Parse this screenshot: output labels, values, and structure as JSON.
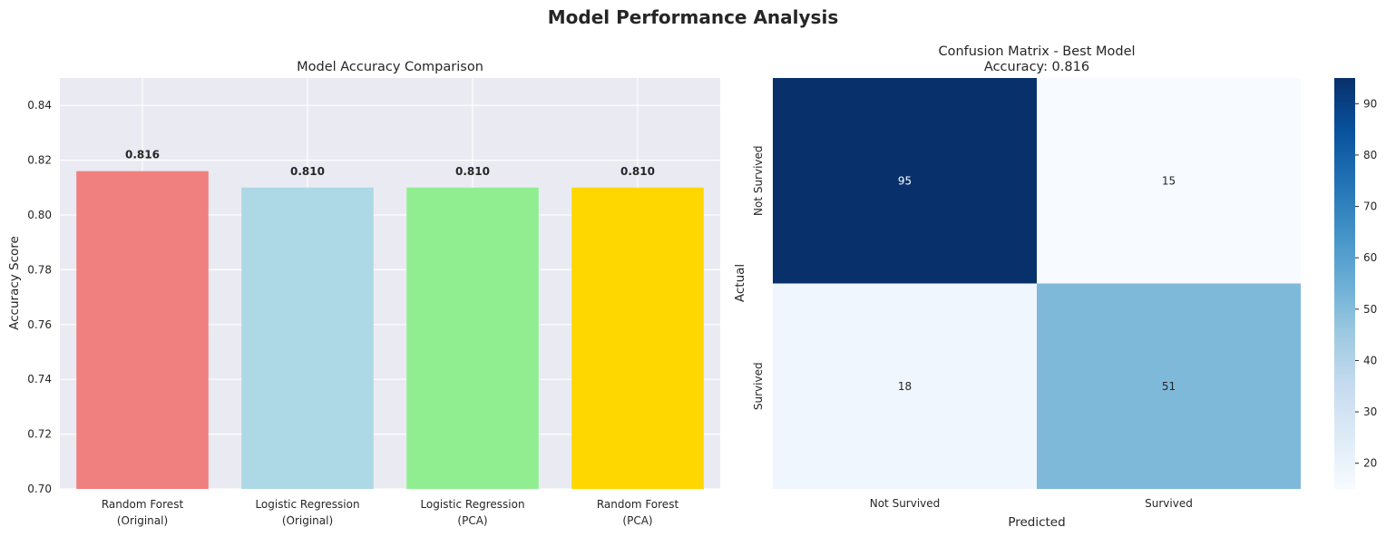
{
  "figure": {
    "title": "Model Performance Analysis"
  },
  "chart_data": [
    {
      "type": "bar",
      "title": "Model Accuracy Comparison",
      "xlabel": "",
      "ylabel": "Accuracy Score",
      "ylim": [
        0.7,
        0.85
      ],
      "yticks": [
        "0.70",
        "0.72",
        "0.74",
        "0.76",
        "0.78",
        "0.80",
        "0.82",
        "0.84"
      ],
      "grid": true,
      "categories": [
        [
          "Random Forest",
          "(Original)"
        ],
        [
          "Logistic Regression",
          "(Original)"
        ],
        [
          "Logistic Regression",
          "(PCA)"
        ],
        [
          "Random Forest",
          "(PCA)"
        ]
      ],
      "values": [
        0.816,
        0.81,
        0.81,
        0.81
      ],
      "value_labels": [
        "0.816",
        "0.810",
        "0.810",
        "0.810"
      ],
      "colors": [
        "#f08080",
        "#add8e6",
        "#90ee90",
        "#ffd700"
      ]
    },
    {
      "type": "heatmap",
      "title": "Confusion Matrix - Best Model",
      "subtitle": "Accuracy: 0.816",
      "xlabel": "Predicted",
      "ylabel": "Actual",
      "xticklabels": [
        "Not Survived",
        "Survived"
      ],
      "yticklabels": [
        "Not Survived",
        "Survived"
      ],
      "matrix": [
        [
          95,
          15
        ],
        [
          18,
          51
        ]
      ],
      "colormap": "Blues",
      "colorbar": {
        "range": [
          15,
          95
        ],
        "ticks": [
          20,
          30,
          40,
          50,
          60,
          70,
          80,
          90
        ]
      }
    }
  ]
}
